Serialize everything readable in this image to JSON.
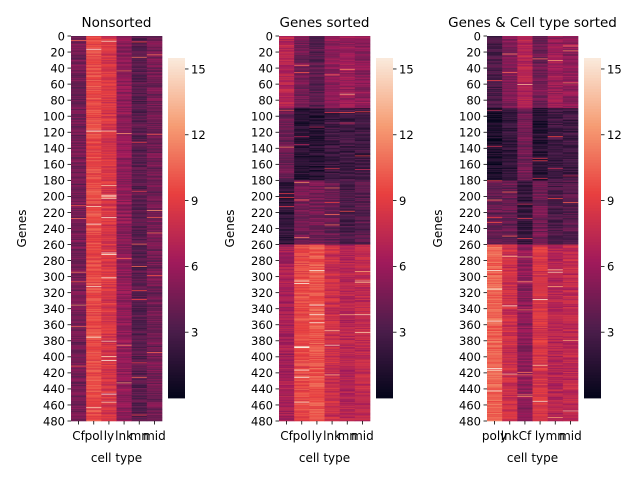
{
  "chart_data": [
    {
      "type": "heatmap",
      "title": "Nonsorted",
      "xlabel": "cell type",
      "ylabel": "Genes",
      "x_tick_labels": [
        "Cf",
        "pol",
        "ly",
        "lnk",
        "mn",
        "mid"
      ],
      "y_tick_labels": [
        "0",
        "20",
        "40",
        "60",
        "80",
        "100",
        "120",
        "140",
        "160",
        "180",
        "200",
        "220",
        "240",
        "260",
        "280",
        "300",
        "320",
        "340",
        "360",
        "380",
        "400",
        "420",
        "440",
        "460",
        "480"
      ],
      "rows": 480,
      "bands": [
        {
          "from": 0,
          "to": 480,
          "values": [
            4.5,
            9.5,
            8.5,
            5.5,
            3.5,
            4.5
          ]
        }
      ],
      "colorbar": {
        "ticks": [
          "3",
          "6",
          "9",
          "12",
          "15"
        ],
        "vmin": 0,
        "vmax": 15.5
      },
      "colormap": [
        "#03051a",
        "#4c1d4b",
        "#a11a5b",
        "#e83f3f",
        "#f69c73",
        "#faebdd"
      ]
    },
    {
      "type": "heatmap",
      "title": "Genes sorted",
      "xlabel": "cell type",
      "ylabel": "Genes",
      "x_tick_labels": [
        "Cf",
        "pol",
        "ly",
        "lnk",
        "mn",
        "mid"
      ],
      "y_tick_labels": [
        "0",
        "20",
        "40",
        "60",
        "80",
        "100",
        "120",
        "140",
        "160",
        "180",
        "200",
        "220",
        "240",
        "260",
        "280",
        "300",
        "320",
        "340",
        "360",
        "380",
        "400",
        "420",
        "440",
        "460",
        "480"
      ],
      "rows": 480,
      "bands": [
        {
          "from": 0,
          "to": 90,
          "values": [
            7.0,
            4.5,
            3.5,
            5.5,
            6.0,
            5.5
          ]
        },
        {
          "from": 90,
          "to": 180,
          "values": [
            4.0,
            1.5,
            1.5,
            2.5,
            2.5,
            2.5
          ]
        },
        {
          "from": 180,
          "to": 260,
          "values": [
            2.0,
            4.5,
            4.5,
            4.0,
            3.0,
            3.5
          ]
        },
        {
          "from": 260,
          "to": 480,
          "values": [
            6.5,
            9.5,
            10.0,
            8.0,
            7.0,
            7.5
          ]
        }
      ],
      "colorbar": {
        "ticks": [
          "3",
          "6",
          "9",
          "12",
          "15"
        ],
        "vmin": 0,
        "vmax": 15.5
      },
      "colormap": [
        "#03051a",
        "#4c1d4b",
        "#a11a5b",
        "#e83f3f",
        "#f69c73",
        "#faebdd"
      ]
    },
    {
      "type": "heatmap",
      "title": "Genes & Cell type sorted",
      "xlabel": "cell type",
      "ylabel": "Genes",
      "x_tick_labels": [
        "poly",
        "lnk",
        "Cf",
        "ly",
        "mn",
        "mid"
      ],
      "y_tick_labels": [
        "0",
        "20",
        "40",
        "60",
        "80",
        "100",
        "120",
        "140",
        "160",
        "180",
        "200",
        "220",
        "240",
        "260",
        "280",
        "300",
        "320",
        "340",
        "360",
        "380",
        "400",
        "420",
        "440",
        "460",
        "480"
      ],
      "rows": 480,
      "bands": [
        {
          "from": 0,
          "to": 90,
          "values": [
            3.0,
            5.0,
            7.0,
            4.5,
            6.0,
            5.5
          ]
        },
        {
          "from": 90,
          "to": 180,
          "values": [
            1.0,
            2.0,
            4.5,
            1.5,
            2.5,
            2.5
          ]
        },
        {
          "from": 180,
          "to": 260,
          "values": [
            4.0,
            4.0,
            2.0,
            4.5,
            3.0,
            3.5
          ]
        },
        {
          "from": 260,
          "to": 480,
          "values": [
            10.5,
            8.0,
            5.5,
            8.5,
            7.0,
            7.5
          ]
        }
      ],
      "colorbar": {
        "ticks": [
          "3",
          "6",
          "9",
          "12",
          "15"
        ],
        "vmin": 0,
        "vmax": 15.5
      },
      "colormap": [
        "#03051a",
        "#4c1d4b",
        "#a11a5b",
        "#e83f3f",
        "#f69c73",
        "#faebdd"
      ]
    }
  ]
}
